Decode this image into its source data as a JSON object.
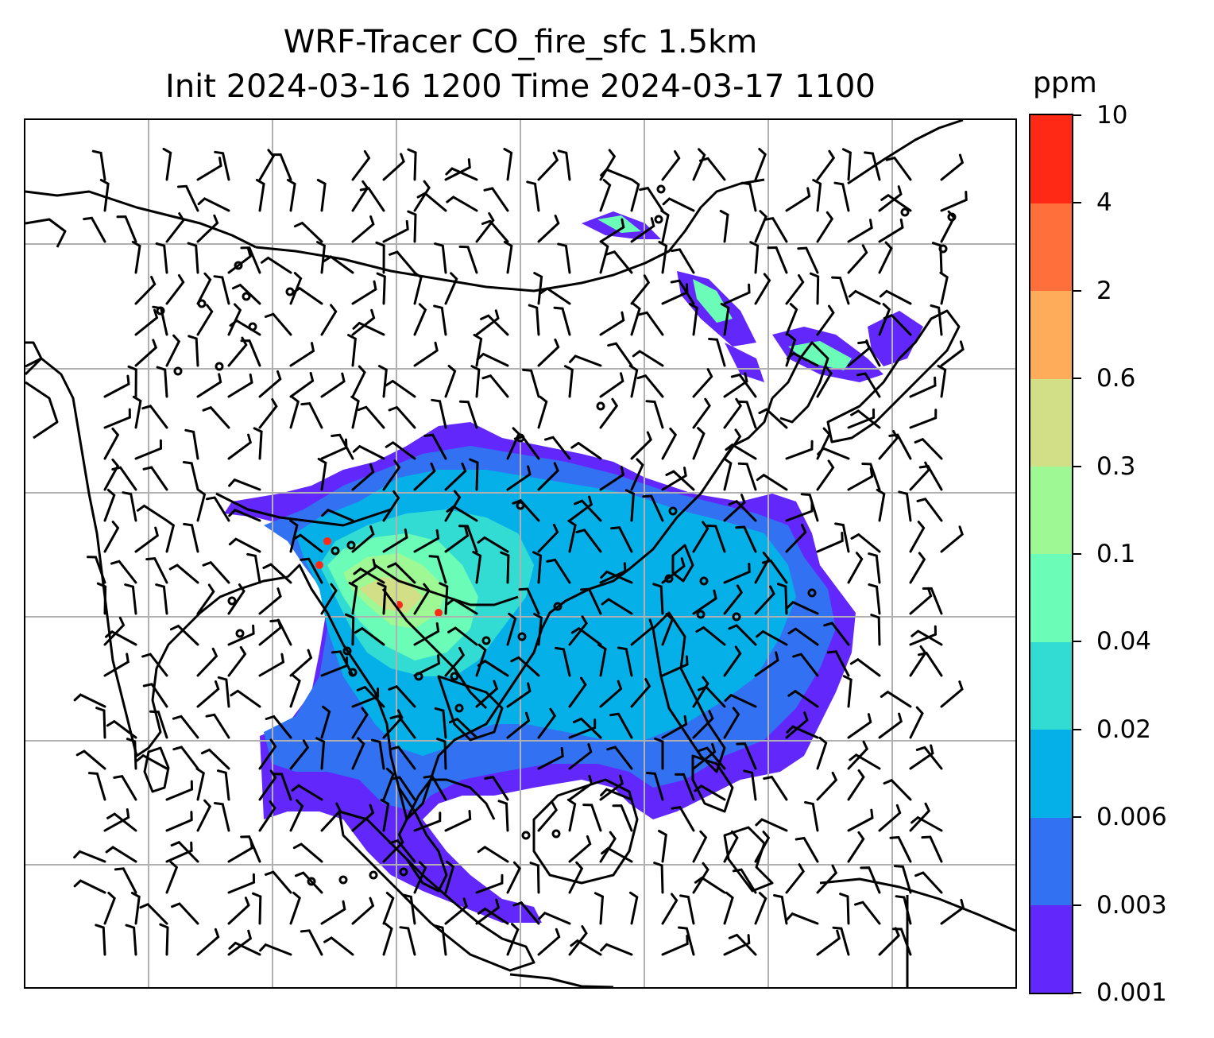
{
  "title_line1": "WRF-Tracer CO_fire_sfc 1.5km",
  "title_line2": "Init 2024-03-16 1200 Time 2024-03-17 1100",
  "colorbar": {
    "unit": "ppm",
    "levels": [
      "0.001",
      "0.003",
      "0.006",
      "0.02",
      "0.04",
      "0.1",
      "0.3",
      "0.6",
      "2",
      "4",
      "10"
    ],
    "colors": [
      "#6127fb",
      "#3272f2",
      "#05b0e9",
      "#32dcd2",
      "#6bfcb8",
      "#9ef894",
      "#d3df86",
      "#feab5a",
      "#ff6f3b",
      "#ff2915"
    ]
  },
  "map": {
    "plume_colors": {
      "outer": "#6127fb",
      "low": "#3272f2",
      "mid": "#05b0e9",
      "cyan": "#32dcd2",
      "green": "#6bfcb8",
      "lightgreen": "#9ef894",
      "yellow": "#d3df86",
      "hot": "#ff2915"
    },
    "gridline_color": "#b0b0b0",
    "coastline_color": "#000000",
    "wind_barb_color": "#000000"
  }
}
